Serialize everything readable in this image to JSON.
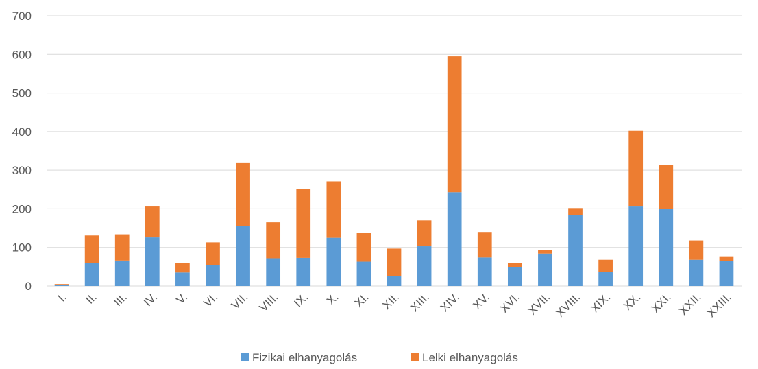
{
  "chart_data": {
    "type": "bar",
    "stacked": true,
    "categories": [
      "I.",
      "II.",
      "III.",
      "IV.",
      "V.",
      "VI.",
      "VII.",
      "VIII.",
      "IX.",
      "X.",
      "XI.",
      "XII.",
      "XIII.",
      "XIV.",
      "XV.",
      "XVI.",
      "XVII.",
      "XVIII.",
      "XIX.",
      "XX.",
      "XXI.",
      "XXII.",
      "XXIII."
    ],
    "series": [
      {
        "name": "Fizikai elhanyagolás",
        "color": "#5B9BD5",
        "values": [
          2,
          60,
          66,
          126,
          35,
          54,
          156,
          72,
          73,
          125,
          63,
          26,
          103,
          243,
          74,
          49,
          84,
          184,
          36,
          206,
          200,
          68,
          64
        ]
      },
      {
        "name": "Lelki elhanyagolás",
        "color": "#ED7D31",
        "values": [
          3,
          71,
          68,
          80,
          25,
          59,
          164,
          93,
          178,
          146,
          74,
          71,
          67,
          352,
          66,
          11,
          10,
          18,
          32,
          196,
          113,
          50,
          13
        ]
      }
    ],
    "yticks": [
      "0",
      "100",
      "200",
      "300",
      "400",
      "500",
      "600",
      "700"
    ],
    "ylim": [
      0,
      700
    ],
    "grid": true,
    "legend_position": "bottom"
  }
}
